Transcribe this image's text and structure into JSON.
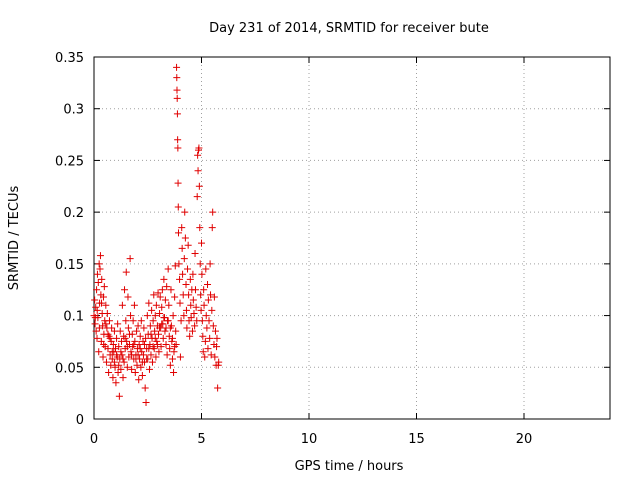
{
  "chart_data": {
    "type": "scatter",
    "title": "Day 231 of 2014, SRMTID for receiver bute",
    "xlabel": "GPS time / hours",
    "ylabel": "SRMTID / TECUs",
    "xlim": [
      0,
      24
    ],
    "ylim": [
      0,
      0.35
    ],
    "xticks": [
      0,
      5,
      10,
      15,
      20
    ],
    "yticks": [
      0,
      0.05,
      0.1,
      0.15,
      0.2,
      0.25,
      0.3,
      0.35
    ],
    "xtick_labels": [
      "0",
      "5",
      "10",
      "15",
      "20"
    ],
    "ytick_labels": [
      "0",
      "0.05",
      "0.1",
      "0.15",
      "0.2",
      "0.25",
      "0.3",
      "0.35"
    ],
    "grid": true,
    "marker": "+",
    "color": "#e00000",
    "series": [
      {
        "name": "SRMTID",
        "points": [
          [
            0.0,
            0.1
          ],
          [
            0.03,
            0.115
          ],
          [
            0.05,
            0.092
          ],
          [
            0.08,
            0.108
          ],
          [
            0.1,
            0.085
          ],
          [
            0.12,
            0.125
          ],
          [
            0.14,
            0.078
          ],
          [
            0.16,
            0.14
          ],
          [
            0.18,
            0.098
          ],
          [
            0.2,
            0.132
          ],
          [
            0.22,
            0.065
          ],
          [
            0.24,
            0.15
          ],
          [
            0.26,
            0.112
          ],
          [
            0.28,
            0.145
          ],
          [
            0.3,
            0.158
          ],
          [
            0.32,
            0.12
          ],
          [
            0.34,
            0.075
          ],
          [
            0.36,
            0.135
          ],
          [
            0.38,
            0.102
          ],
          [
            0.4,
            0.09
          ],
          [
            0.42,
            0.06
          ],
          [
            0.44,
            0.118
          ],
          [
            0.46,
            0.082
          ],
          [
            0.48,
            0.128
          ],
          [
            0.5,
            0.095
          ],
          [
            0.52,
            0.07
          ],
          [
            0.55,
            0.11
          ],
          [
            0.58,
            0.055
          ],
          [
            0.6,
            0.088
          ],
          [
            0.62,
            0.102
          ],
          [
            0.65,
            0.068
          ],
          [
            0.68,
            0.045
          ],
          [
            0.7,
            0.08
          ],
          [
            0.72,
            0.095
          ],
          [
            0.75,
            0.062
          ],
          [
            0.78,
            0.052
          ],
          [
            0.8,
            0.075
          ],
          [
            0.82,
            0.088
          ],
          [
            0.85,
            0.058
          ],
          [
            0.88,
            0.04
          ],
          [
            0.9,
            0.072
          ],
          [
            0.92,
            0.065
          ],
          [
            0.95,
            0.085
          ],
          [
            0.98,
            0.05
          ],
          [
            1.0,
            0.068
          ],
          [
            1.02,
            0.035
          ],
          [
            1.05,
            0.078
          ],
          [
            1.08,
            0.06
          ],
          [
            1.1,
            0.092
          ],
          [
            1.12,
            0.045
          ],
          [
            1.15,
            0.07
          ],
          [
            1.18,
            0.022
          ],
          [
            1.2,
            0.058
          ],
          [
            1.22,
            0.085
          ],
          [
            1.25,
            0.048
          ],
          [
            1.28,
            0.075
          ],
          [
            1.3,
            0.062
          ],
          [
            1.32,
            0.11
          ],
          [
            1.35,
            0.04
          ],
          [
            1.38,
            0.08
          ],
          [
            1.4,
            0.055
          ],
          [
            1.42,
            0.125
          ],
          [
            1.45,
            0.068
          ],
          [
            1.48,
            0.095
          ],
          [
            1.5,
            0.142
          ],
          [
            1.52,
            0.075
          ],
          [
            1.55,
            0.05
          ],
          [
            1.58,
            0.118
          ],
          [
            1.6,
            0.088
          ],
          [
            1.62,
            0.06
          ],
          [
            1.65,
            0.072
          ],
          [
            1.68,
            0.155
          ],
          [
            1.7,
            0.1
          ],
          [
            1.72,
            0.065
          ],
          [
            1.75,
            0.048
          ],
          [
            1.78,
            0.082
          ],
          [
            1.8,
            0.07
          ],
          [
            1.82,
            0.095
          ],
          [
            1.85,
            0.058
          ],
          [
            1.88,
            0.11
          ],
          [
            1.9,
            0.075
          ],
          [
            1.92,
            0.045
          ],
          [
            1.95,
            0.062
          ],
          [
            1.98,
            0.085
          ],
          [
            2.0,
            0.052
          ],
          [
            2.02,
            0.068
          ],
          [
            2.05,
            0.09
          ],
          [
            2.08,
            0.038
          ],
          [
            2.1,
            0.072
          ],
          [
            2.12,
            0.058
          ],
          [
            2.15,
            0.08
          ],
          [
            2.18,
            0.05
          ],
          [
            2.2,
            0.095
          ],
          [
            2.22,
            0.065
          ],
          [
            2.25,
            0.042
          ],
          [
            2.28,
            0.075
          ],
          [
            2.3,
            0.062
          ],
          [
            2.32,
            0.088
          ],
          [
            2.35,
            0.055
          ],
          [
            2.38,
            0.03
          ],
          [
            2.4,
            0.078
          ],
          [
            2.42,
            0.016
          ],
          [
            2.45,
            0.068
          ],
          [
            2.48,
            0.1
          ],
          [
            2.5,
            0.058
          ],
          [
            2.52,
            0.082
          ],
          [
            2.55,
            0.112
          ],
          [
            2.58,
            0.048
          ],
          [
            2.6,
            0.072
          ],
          [
            2.62,
            0.09
          ],
          [
            2.65,
            0.062
          ],
          [
            2.68,
            0.105
          ],
          [
            2.7,
            0.078
          ],
          [
            2.72,
            0.055
          ],
          [
            2.75,
            0.095
          ],
          [
            2.78,
            0.12
          ],
          [
            2.8,
            0.068
          ],
          [
            2.82,
            0.085
          ],
          [
            2.85,
            0.1
          ],
          [
            2.88,
            0.06
          ],
          [
            2.9,
            0.11
          ],
          [
            2.92,
            0.075
          ],
          [
            2.95,
            0.09
          ],
          [
            2.98,
            0.122
          ],
          [
            3.0,
            0.082
          ],
          [
            3.02,
            0.065
          ],
          [
            3.05,
            0.102
          ],
          [
            3.08,
            0.118
          ],
          [
            3.1,
            0.088
          ],
          [
            3.12,
            0.07
          ],
          [
            3.15,
            0.108
          ],
          [
            3.18,
            0.125
          ],
          [
            3.2,
            0.092
          ],
          [
            3.22,
            0.078
          ],
          [
            3.25,
            0.135
          ],
          [
            3.28,
            0.098
          ],
          [
            3.3,
            0.085
          ],
          [
            3.32,
            0.115
          ],
          [
            3.35,
            0.072
          ],
          [
            3.38,
            0.128
          ],
          [
            3.4,
            0.062
          ],
          [
            3.42,
            0.095
          ],
          [
            3.45,
            0.145
          ],
          [
            3.48,
            0.11
          ],
          [
            3.5,
            0.08
          ],
          [
            3.52,
            0.068
          ],
          [
            3.55,
            0.052
          ],
          [
            3.58,
            0.125
          ],
          [
            3.6,
            0.09
          ],
          [
            3.62,
            0.075
          ],
          [
            3.65,
            0.058
          ],
          [
            3.68,
            0.1
          ],
          [
            3.7,
            0.045
          ],
          [
            3.72,
            0.065
          ],
          [
            3.75,
            0.118
          ],
          [
            3.78,
            0.148
          ],
          [
            3.8,
            0.085
          ],
          [
            3.82,
            0.072
          ],
          [
            3.84,
            0.34
          ],
          [
            3.85,
            0.33
          ],
          [
            3.86,
            0.318
          ],
          [
            3.87,
            0.31
          ],
          [
            3.88,
            0.295
          ],
          [
            3.89,
            0.27
          ],
          [
            3.9,
            0.262
          ],
          [
            3.91,
            0.228
          ],
          [
            3.92,
            0.205
          ],
          [
            3.93,
            0.18
          ],
          [
            3.95,
            0.15
          ],
          [
            3.98,
            0.135
          ],
          [
            4.0,
            0.112
          ],
          [
            4.02,
            0.06
          ],
          [
            4.05,
            0.095
          ],
          [
            4.08,
            0.185
          ],
          [
            4.1,
            0.165
          ],
          [
            4.12,
            0.14
          ],
          [
            4.15,
            0.12
          ],
          [
            4.18,
            0.1
          ],
          [
            4.2,
            0.155
          ],
          [
            4.22,
            0.2
          ],
          [
            4.25,
            0.175
          ],
          [
            4.28,
            0.13
          ],
          [
            4.3,
            0.105
          ],
          [
            4.32,
            0.088
          ],
          [
            4.35,
            0.145
          ],
          [
            4.38,
            0.168
          ],
          [
            4.4,
            0.12
          ],
          [
            4.42,
            0.095
          ],
          [
            4.45,
            0.08
          ],
          [
            4.48,
            0.135
          ],
          [
            4.5,
            0.11
          ],
          [
            4.52,
            0.098
          ],
          [
            4.55,
            0.125
          ],
          [
            4.58,
            0.085
          ],
          [
            4.6,
            0.14
          ],
          [
            4.62,
            0.115
          ],
          [
            4.65,
            0.102
          ],
          [
            4.68,
            0.09
          ],
          [
            4.7,
            0.16
          ],
          [
            4.72,
            0.125
          ],
          [
            4.75,
            0.108
          ],
          [
            4.78,
            0.095
          ],
          [
            4.8,
            0.215
          ],
          [
            4.82,
            0.255
          ],
          [
            4.84,
            0.24
          ],
          [
            4.86,
            0.26
          ],
          [
            4.88,
            0.262
          ],
          [
            4.9,
            0.225
          ],
          [
            4.92,
            0.185
          ],
          [
            4.94,
            0.15
          ],
          [
            4.96,
            0.12
          ],
          [
            4.98,
            0.105
          ],
          [
            5.0,
            0.17
          ],
          [
            5.02,
            0.14
          ],
          [
            5.04,
            0.095
          ],
          [
            5.06,
            0.08
          ],
          [
            5.08,
            0.065
          ],
          [
            5.1,
            0.125
          ],
          [
            5.12,
            0.11
          ],
          [
            5.15,
            0.06
          ],
          [
            5.18,
            0.075
          ],
          [
            5.2,
            0.145
          ],
          [
            5.22,
            0.1
          ],
          [
            5.25,
            0.088
          ],
          [
            5.28,
            0.13
          ],
          [
            5.3,
            0.068
          ],
          [
            5.32,
            0.115
          ],
          [
            5.35,
            0.095
          ],
          [
            5.38,
            0.078
          ],
          [
            5.4,
            0.15
          ],
          [
            5.42,
            0.12
          ],
          [
            5.45,
            0.062
          ],
          [
            5.48,
            0.105
          ],
          [
            5.5,
            0.185
          ],
          [
            5.52,
            0.2
          ],
          [
            5.55,
            0.09
          ],
          [
            5.58,
            0.072
          ],
          [
            5.6,
            0.118
          ],
          [
            5.62,
            0.06
          ],
          [
            5.65,
            0.085
          ],
          [
            5.68,
            0.052
          ],
          [
            5.7,
            0.07
          ],
          [
            5.72,
            0.078
          ],
          [
            5.75,
            0.03
          ],
          [
            5.78,
            0.052
          ],
          [
            5.8,
            0.055
          ],
          [
            0.06,
            0.098
          ],
          [
            0.15,
            0.105
          ],
          [
            0.25,
            0.088
          ],
          [
            0.35,
            0.112
          ],
          [
            0.45,
            0.072
          ],
          [
            0.55,
            0.092
          ],
          [
            0.65,
            0.082
          ],
          [
            0.75,
            0.078
          ],
          [
            0.85,
            0.065
          ],
          [
            0.95,
            0.055
          ],
          [
            1.05,
            0.062
          ],
          [
            1.15,
            0.052
          ],
          [
            1.25,
            0.065
          ],
          [
            1.35,
            0.058
          ],
          [
            1.45,
            0.078
          ],
          [
            1.55,
            0.07
          ],
          [
            1.65,
            0.082
          ],
          [
            1.75,
            0.062
          ],
          [
            1.85,
            0.072
          ],
          [
            1.95,
            0.058
          ],
          [
            2.05,
            0.062
          ],
          [
            2.15,
            0.068
          ],
          [
            2.25,
            0.055
          ],
          [
            2.35,
            0.072
          ],
          [
            2.45,
            0.058
          ],
          [
            2.55,
            0.068
          ],
          [
            2.65,
            0.082
          ],
          [
            2.75,
            0.07
          ],
          [
            2.85,
            0.078
          ],
          [
            2.95,
            0.072
          ],
          [
            3.05,
            0.088
          ],
          [
            3.15,
            0.092
          ],
          [
            3.25,
            0.098
          ],
          [
            3.35,
            0.088
          ],
          [
            3.45,
            0.095
          ],
          [
            3.55,
            0.088
          ],
          [
            3.65,
            0.078
          ],
          [
            3.75,
            0.07
          ]
        ]
      }
    ]
  }
}
